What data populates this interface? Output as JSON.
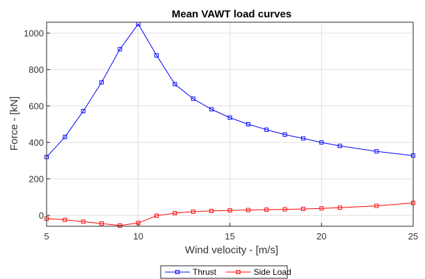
{
  "chart_data": {
    "type": "line",
    "title": "Mean VAWT load curves",
    "xlabel": "Wind velocity - [m/s]",
    "ylabel": "Force - [kN]",
    "xlim": [
      5,
      25
    ],
    "ylim": [
      -60,
      1060
    ],
    "xticks": [
      5,
      10,
      15,
      20,
      25
    ],
    "yticks": [
      0,
      200,
      400,
      600,
      800,
      1000
    ],
    "grid": true,
    "legend_position": "bottom-center, outside",
    "series": [
      {
        "name": "Thrust",
        "color": "#0000ff",
        "marker": "square",
        "x": [
          5,
          6,
          7,
          8,
          9,
          10,
          11,
          12,
          13,
          14,
          15,
          16,
          17,
          18,
          19,
          20,
          21,
          23,
          25
        ],
        "values": [
          320,
          430,
          572,
          730,
          912,
          1050,
          878,
          720,
          640,
          582,
          536,
          500,
          470,
          443,
          422,
          400,
          381,
          351,
          328
        ]
      },
      {
        "name": "Side Load",
        "color": "#ff0000",
        "marker": "square",
        "x": [
          5,
          6,
          7,
          8,
          9,
          10,
          11,
          12,
          13,
          14,
          15,
          16,
          17,
          18,
          19,
          20,
          21,
          23,
          25
        ],
        "values": [
          -18,
          -25,
          -35,
          -45,
          -56,
          -42,
          -2,
          12,
          20,
          24,
          27,
          29,
          31,
          33,
          35,
          38,
          42,
          52,
          68
        ]
      }
    ]
  }
}
